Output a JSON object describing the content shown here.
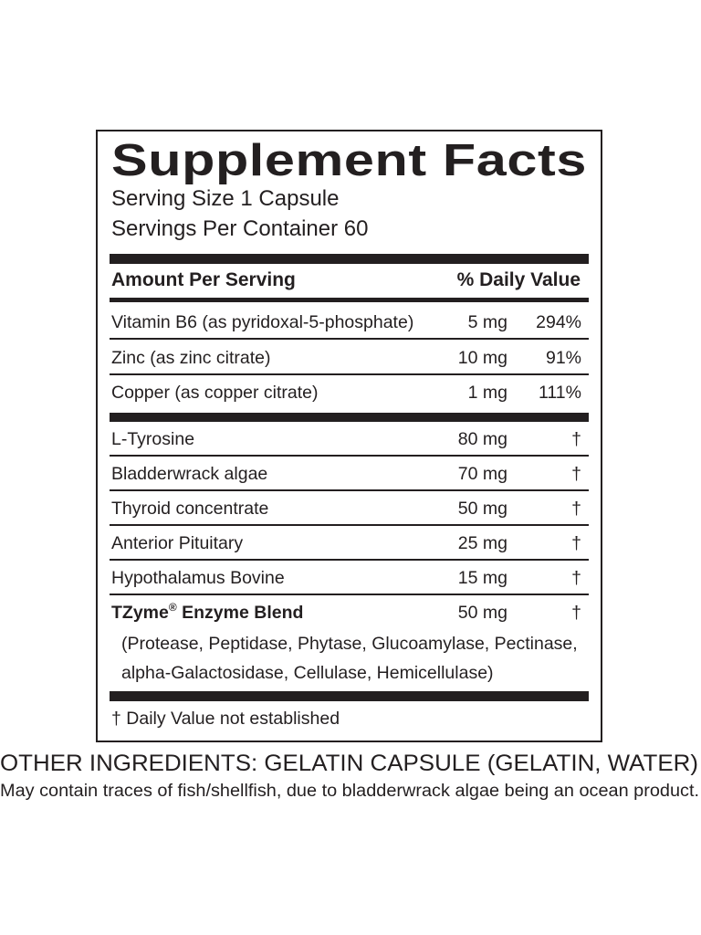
{
  "panel": {
    "title": "Supplement Facts",
    "serving_size": "Serving Size 1 Capsule",
    "servings_per_container": "Servings Per Container 60",
    "header": {
      "left": "Amount Per Serving",
      "right": "% Daily Value"
    },
    "vitamins": [
      [
        "Vitamin B6 (as pyridoxal-5-phosphate)",
        "5 mg",
        "294%"
      ],
      [
        "Zinc (as zinc citrate)",
        "10 mg",
        "91%"
      ],
      [
        "Copper (as copper citrate)",
        "1 mg",
        "111%"
      ]
    ],
    "others": [
      [
        "L-Tyrosine",
        "80 mg",
        "†"
      ],
      [
        "Bladderwrack algae",
        "70 mg",
        "†"
      ],
      [
        "Thyroid concentrate",
        "50 mg",
        "†"
      ],
      [
        "Anterior Pituitary",
        "25 mg",
        "†"
      ],
      [
        "Hypothalamus Bovine",
        "15 mg",
        "†"
      ]
    ],
    "blend": {
      "brand": "TZyme",
      "mark": "®",
      "name": "Enzyme Blend",
      "amount": "50 mg",
      "dv": "†",
      "contents": [
        "(Protease, Peptidase, Phytase, Glucoamylase, Pectinase,",
        "alpha-Galactosidase, Cellulase, Hemicellulase)"
      ]
    },
    "footnote": "† Daily Value not established"
  },
  "other_ingredients": "OTHER INGREDIENTS: GELATIN CAPSULE (GELATIN, WATER)",
  "allergen_note": "May contain traces of fish/shellfish, due to bladderwrack algae being an ocean product."
}
